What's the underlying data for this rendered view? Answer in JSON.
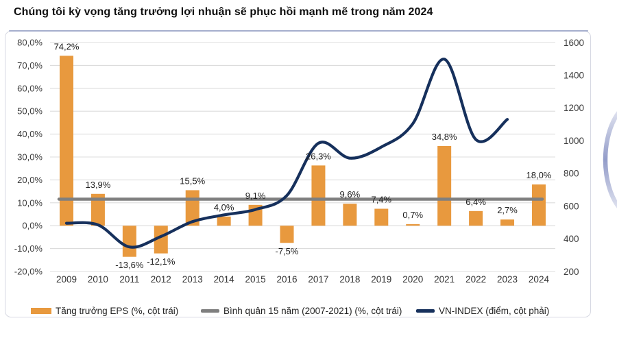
{
  "title": "Chúng tôi kỳ vọng tăng trưởng lợi nhuận sẽ phục hồi mạnh mẽ trong năm 2024",
  "colors": {
    "bar_orange": "#E8993E",
    "avg_gray": "#7f7f7f",
    "vnindex_navy": "#16305c",
    "gridline": "#dcdcdc",
    "tick_text": "#3a3a3a",
    "data_label_text": "#1f1f1f",
    "panel_border": "#d6d8e2",
    "panel_top_accent": "#97a1c6",
    "decor_arc": "#8d97c6"
  },
  "chart_data": {
    "type": "bar",
    "subtype": "combo-bar-line-dual-axis",
    "categories": [
      "2009",
      "2010",
      "2011",
      "2012",
      "2013",
      "2014",
      "2015",
      "2016",
      "2017",
      "2018",
      "2019",
      "2020",
      "2021",
      "2022",
      "2023",
      "2024"
    ],
    "series": [
      {
        "name": "Tăng trưởng EPS (%, cột trái)",
        "type": "bar",
        "axis": "left",
        "values": [
          74.2,
          13.9,
          -13.6,
          -12.1,
          15.5,
          4.0,
          9.1,
          -7.5,
          26.3,
          9.6,
          7.4,
          0.7,
          34.8,
          6.4,
          2.7,
          18.0
        ],
        "data_labels": [
          "74,2%",
          "13,9%",
          "-13,6%",
          "-12,1%",
          "15,5%",
          "4,0%",
          "9,1%",
          "-7,5%",
          "26,3%",
          "9,6%",
          "7,4%",
          "0,7%",
          "34,8%",
          "6,4%",
          "2,7%",
          "18,0%"
        ]
      },
      {
        "name": "Bình quân 15 năm (2007-2021) (%, cột trái)",
        "type": "horizontal-line",
        "axis": "left",
        "value": 11.6
      },
      {
        "name": "VN-INDEX (điểm, cột phải)",
        "type": "smooth-line",
        "axis": "right",
        "x_categories": [
          "2009",
          "2010",
          "2011",
          "2012",
          "2013",
          "2014",
          "2015",
          "2016",
          "2017",
          "2018",
          "2019",
          "2020",
          "2021",
          "2022",
          "2023"
        ],
        "values": [
          495,
          485,
          350,
          414,
          505,
          546,
          579,
          665,
          984,
          893,
          961,
          1104,
          1498,
          1007,
          1130
        ]
      }
    ],
    "left_axis": {
      "min": -20,
      "max": 80,
      "step": 10,
      "tick_labels": [
        "80,0%",
        "70,0%",
        "60,0%",
        "50,0%",
        "40,0%",
        "30,0%",
        "20,0%",
        "10,0%",
        "0,0%",
        "-10,0%",
        "-20,0%"
      ],
      "tick_values": [
        80,
        70,
        60,
        50,
        40,
        30,
        20,
        10,
        0,
        -10,
        -20
      ]
    },
    "right_axis": {
      "min": 200,
      "max": 1600,
      "step": 200,
      "tick_labels": [
        "1600",
        "1400",
        "1200",
        "1000",
        "800",
        "600",
        "400",
        "200"
      ],
      "tick_values": [
        1600,
        1400,
        1200,
        1000,
        800,
        600,
        400,
        200
      ]
    },
    "grid": "horizontal-only",
    "legend_position": "bottom"
  },
  "legend": {
    "items": [
      {
        "label": "Tăng trưởng EPS (%, cột trái)",
        "swatch": "orange-bar-swatch"
      },
      {
        "label": "Bình quân 15 năm (2007-2021) (%, cột trái)",
        "swatch": "gray-line-swatch"
      },
      {
        "label": "VN-INDEX (điểm, cột phải)",
        "swatch": "navy-line-swatch"
      }
    ]
  }
}
